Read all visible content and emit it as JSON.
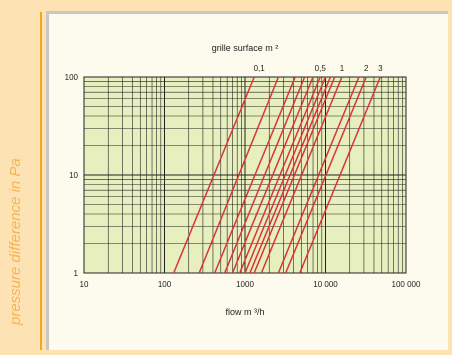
{
  "sidebar": {
    "label": "pressure difference in Pa"
  },
  "colors": {
    "background": "#fde3b4",
    "accent_line": "#f7a51d",
    "panel": "#fdfbee",
    "plot_area": "#e6efbd",
    "grid": "#222222",
    "curve": "#d9343a",
    "sidebar_text": "#f6b453"
  },
  "chart_data": {
    "type": "line",
    "title": "grille surface m ²",
    "xlabel": "flow m ³/h",
    "ylabel": "pressure difference in Pa",
    "x_scale": "log",
    "y_scale": "log",
    "xlim": [
      10,
      100000
    ],
    "ylim": [
      1,
      100
    ],
    "grid": true,
    "x_tick_labels": [
      {
        "value": 10,
        "label": "10"
      },
      {
        "value": 100,
        "label": "100"
      },
      {
        "value": 1000,
        "label": "1000"
      },
      {
        "value": 10000,
        "label": "10 000"
      },
      {
        "value": 100000,
        "label": "100 000"
      }
    ],
    "y_tick_labels": [
      {
        "value": 1,
        "label": "1"
      },
      {
        "value": 10,
        "label": "10"
      },
      {
        "value": 100,
        "label": "100"
      }
    ],
    "top_labels": [
      {
        "label": "0,1",
        "flow": 1500
      },
      {
        "label": "0,5",
        "flow": 8600
      },
      {
        "label": "1",
        "flow": 16000
      },
      {
        "label": "2",
        "flow": 32000
      },
      {
        "label": "3",
        "flow": 48000
      }
    ],
    "series": [
      {
        "x": [
          130,
          1300
        ],
        "y": [
          1,
          100
        ]
      },
      {
        "x": [
          270,
          2600
        ],
        "y": [
          1,
          100
        ]
      },
      {
        "x": [
          420,
          4200
        ],
        "y": [
          1,
          100
        ]
      },
      {
        "x": [
          560,
          5500
        ],
        "y": [
          1,
          100
        ]
      },
      {
        "x": [
          700,
          7000
        ],
        "y": [
          1,
          100
        ]
      },
      {
        "x": [
          860,
          8600
        ],
        "y": [
          1,
          100
        ]
      },
      {
        "x": [
          1000,
          10000
        ],
        "y": [
          1,
          100
        ]
      },
      {
        "x": [
          1150,
          11500
        ],
        "y": [
          1,
          100
        ]
      },
      {
        "x": [
          1300,
          13000
        ],
        "y": [
          1,
          100
        ]
      },
      {
        "x": [
          1600,
          16000
        ],
        "y": [
          1,
          100
        ]
      },
      {
        "x": [
          2600,
          26000
        ],
        "y": [
          1,
          100
        ]
      },
      {
        "x": [
          3200,
          32000
        ],
        "y": [
          1,
          100
        ]
      },
      {
        "x": [
          4800,
          48000
        ],
        "y": [
          1,
          100
        ]
      }
    ]
  }
}
